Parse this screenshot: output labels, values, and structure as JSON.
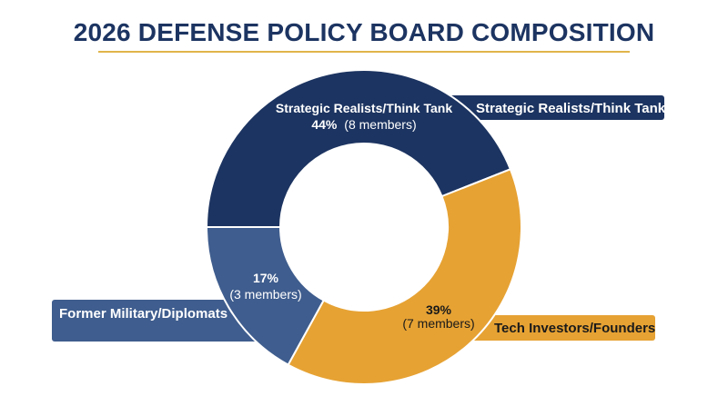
{
  "title": "2026 DEFENSE POLICY BOARD COMPOSITION",
  "chart_data": {
    "type": "pie",
    "style": "donut",
    "title": "2026 DEFENSE POLICY BOARD COMPOSITION",
    "slices": [
      {
        "name": "Strategic Realists/Think Tank",
        "percent": 44,
        "percent_label": "44%",
        "members": 8,
        "members_label": "(8 members)",
        "color": "#1c3461"
      },
      {
        "name": "Tech Investors/Founders",
        "percent": 39,
        "percent_label": "39%",
        "members": 7,
        "members_label": "(7 members)",
        "color": "#e6a233"
      },
      {
        "name": "Former Military/Diplomats",
        "percent": 17,
        "percent_label": "17%",
        "members": 3,
        "members_label": "(3 members)",
        "color": "#3f5d8e"
      }
    ],
    "callouts": [
      {
        "text": "Strategic Realists/Think Tank",
        "slice": 0
      },
      {
        "text": "Tech Investors/Founders",
        "slice": 1
      },
      {
        "text": "Former Military/Diplomats",
        "slice": 2
      }
    ]
  }
}
